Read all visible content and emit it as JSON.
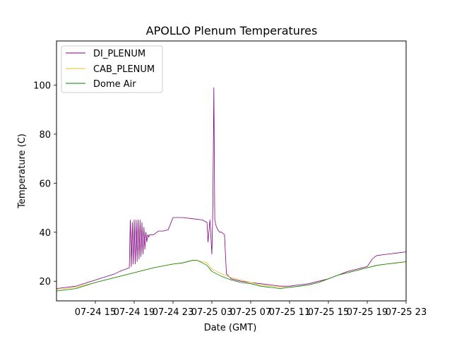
{
  "chart_data": {
    "type": "line",
    "title": "APOLLO Plenum Temperatures",
    "xlabel": "Date (GMT)",
    "ylabel": "Temperature (C)",
    "x_unit": "hours since 07-24 11:00 GMT (approx.)",
    "xlim": [
      0,
      36
    ],
    "ylim": [
      12,
      118
    ],
    "x_ticks": [
      {
        "x": 4,
        "label": "07-24 15"
      },
      {
        "x": 8,
        "label": "07-24 19"
      },
      {
        "x": 12,
        "label": "07-24 23"
      },
      {
        "x": 16,
        "label": "07-25 03"
      },
      {
        "x": 20,
        "label": "07-25 07"
      },
      {
        "x": 24,
        "label": "07-25 11"
      },
      {
        "x": 28,
        "label": "07-25 15"
      },
      {
        "x": 32,
        "label": "07-25 19"
      },
      {
        "x": 36,
        "label": "07-25 23"
      }
    ],
    "y_ticks": [
      20,
      40,
      60,
      80,
      100
    ],
    "legend_position": "top-left",
    "grid": false,
    "series": [
      {
        "name": "DI_PLENUM",
        "color": "#800080",
        "x": [
          0,
          2,
          4,
          6,
          6.5,
          7.5,
          7.6,
          7.7,
          7.8,
          7.9,
          8.0,
          8.1,
          8.2,
          8.3,
          8.4,
          8.5,
          8.6,
          8.7,
          8.8,
          8.9,
          9.0,
          9.1,
          9.2,
          9.3,
          9.4,
          9.5,
          9.6,
          9.7,
          9.8,
          10,
          10.5,
          11,
          11.5,
          12,
          13,
          14,
          15,
          15.5,
          15.6,
          15.8,
          16.0,
          16.1,
          16.2,
          16.3,
          16.4,
          16.6,
          16.8,
          17,
          17.3,
          17.5,
          18,
          19,
          20,
          21,
          22,
          23,
          24,
          25,
          26,
          27,
          28,
          29,
          30,
          31,
          32,
          32.5,
          32.8,
          33,
          34,
          35,
          36
        ],
        "y": [
          17,
          18,
          20.5,
          23,
          24,
          25.5,
          45,
          26,
          44,
          27,
          45,
          27,
          45,
          28,
          45,
          29,
          45,
          30,
          44,
          31,
          42,
          33,
          40,
          36,
          39,
          38,
          39,
          39,
          39,
          39,
          40.5,
          40.5,
          41,
          46,
          46,
          45.5,
          45,
          44,
          36,
          45,
          31,
          51,
          99,
          45,
          43,
          41,
          40,
          40,
          39,
          23,
          21,
          20,
          19.5,
          19,
          18.5,
          18,
          18,
          18.5,
          19,
          20,
          21,
          22.5,
          24,
          25,
          26,
          29,
          30,
          30.5,
          31,
          31.5,
          32
        ]
      },
      {
        "name": "CAB_PLENUM",
        "color": "#e8c020",
        "x": [
          0,
          2,
          4,
          6,
          8,
          10,
          12,
          13,
          14,
          14.5,
          15,
          15.5,
          16,
          16.5,
          17,
          18,
          19,
          20,
          21,
          22,
          23,
          24,
          25,
          26,
          27,
          28,
          29,
          30,
          31,
          32,
          33,
          34,
          35,
          36
        ],
        "y": [
          16.5,
          17.5,
          19.5,
          21.5,
          23.5,
          25.5,
          27,
          27.5,
          28.5,
          28.5,
          28,
          27.5,
          25,
          24,
          23,
          21.5,
          20.5,
          19.5,
          18.5,
          18,
          17.5,
          17.5,
          18,
          18.5,
          19.5,
          21,
          22.5,
          23.5,
          24.5,
          25.5,
          26.5,
          27,
          27.5,
          28
        ]
      },
      {
        "name": "Dome Air",
        "color": "#008000",
        "x": [
          0,
          2,
          4,
          6,
          8,
          10,
          12,
          13,
          14,
          14.5,
          15,
          15.5,
          16,
          16.5,
          17,
          18,
          19,
          20,
          21,
          22,
          23,
          24,
          25,
          26,
          27,
          28,
          29,
          30,
          31,
          32,
          33,
          34,
          35,
          36
        ],
        "y": [
          16,
          17,
          19.5,
          21.5,
          23.5,
          25.5,
          27,
          27.5,
          28.5,
          28.5,
          27.5,
          26.5,
          24,
          23,
          22,
          20.5,
          19.5,
          19,
          18,
          17.5,
          17,
          17.5,
          18,
          18.5,
          19.5,
          21,
          22.5,
          23.5,
          24.5,
          25.5,
          26.5,
          27,
          27.5,
          28
        ]
      }
    ]
  }
}
